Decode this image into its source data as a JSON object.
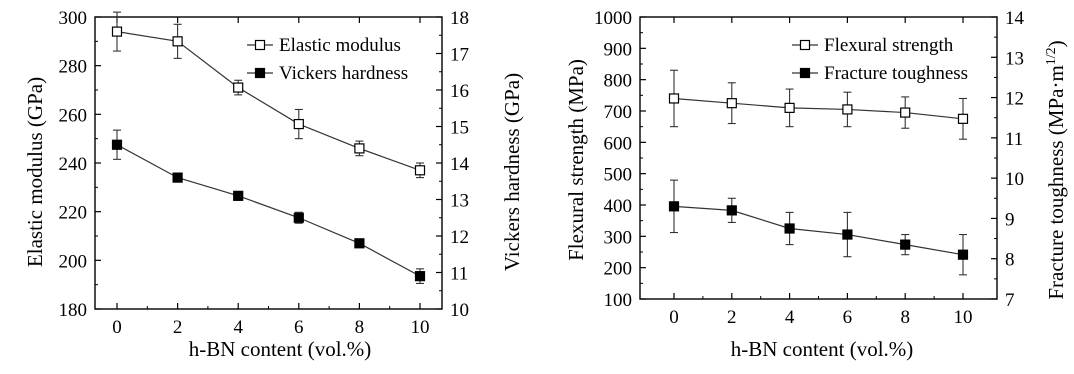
{
  "chart_data": [
    {
      "type": "line",
      "xlabel": "h-BN content (vol.%)",
      "ylabel": "Elastic modulus (GPa)",
      "y2label": "Vickers hardness (GPa)",
      "x": [
        0,
        2,
        4,
        6,
        8,
        10
      ],
      "xticks": [
        "0",
        "2",
        "4",
        "6",
        "8",
        "10"
      ],
      "ylim": [
        180,
        300
      ],
      "yticks": [
        "180",
        "200",
        "220",
        "240",
        "260",
        "280",
        "300"
      ],
      "y2lim": [
        10,
        18
      ],
      "y2ticks": [
        "10",
        "11",
        "12",
        "13",
        "14",
        "15",
        "16",
        "17",
        "18"
      ],
      "legend_position": "top-right",
      "series": [
        {
          "name": "Elastic modulus",
          "axis": "left",
          "marker": "open-square",
          "values": [
            294,
            290,
            271,
            256,
            246,
            237
          ],
          "errors": [
            8,
            7,
            3,
            6,
            3,
            3
          ]
        },
        {
          "name": "Vickers hardness",
          "axis": "right",
          "marker": "filled-square",
          "values": [
            14.5,
            13.6,
            13.1,
            12.5,
            11.8,
            10.9
          ],
          "errors": [
            0.4,
            0.1,
            0.1,
            0.15,
            0.05,
            0.2
          ]
        }
      ]
    },
    {
      "type": "line",
      "xlabel": "h-BN content (vol.%)",
      "ylabel": "Flexural strength (MPa)",
      "y2label": "Fracture toughness (MPa·m^1/2)",
      "x": [
        0,
        2,
        4,
        6,
        8,
        10
      ],
      "xticks": [
        "0",
        "2",
        "4",
        "6",
        "8",
        "10"
      ],
      "ylim": [
        100,
        1000
      ],
      "yticks": [
        "100",
        "200",
        "300",
        "400",
        "500",
        "600",
        "700",
        "800",
        "900",
        "1000"
      ],
      "y2lim": [
        7,
        14
      ],
      "y2ticks": [
        "7",
        "8",
        "9",
        "10",
        "11",
        "12",
        "13",
        "14"
      ],
      "legend_position": "top-right",
      "series": [
        {
          "name": "Flexural strength",
          "axis": "left",
          "marker": "open-square",
          "values": [
            740,
            725,
            710,
            705,
            695,
            675
          ],
          "errors": [
            90,
            65,
            60,
            55,
            50,
            65
          ]
        },
        {
          "name": "Fracture toughness",
          "axis": "right",
          "marker": "filled-square",
          "values": [
            9.3,
            9.2,
            8.75,
            8.6,
            8.35,
            8.1
          ],
          "errors": [
            0.65,
            0.3,
            0.4,
            0.55,
            0.25,
            0.5
          ]
        }
      ]
    }
  ]
}
